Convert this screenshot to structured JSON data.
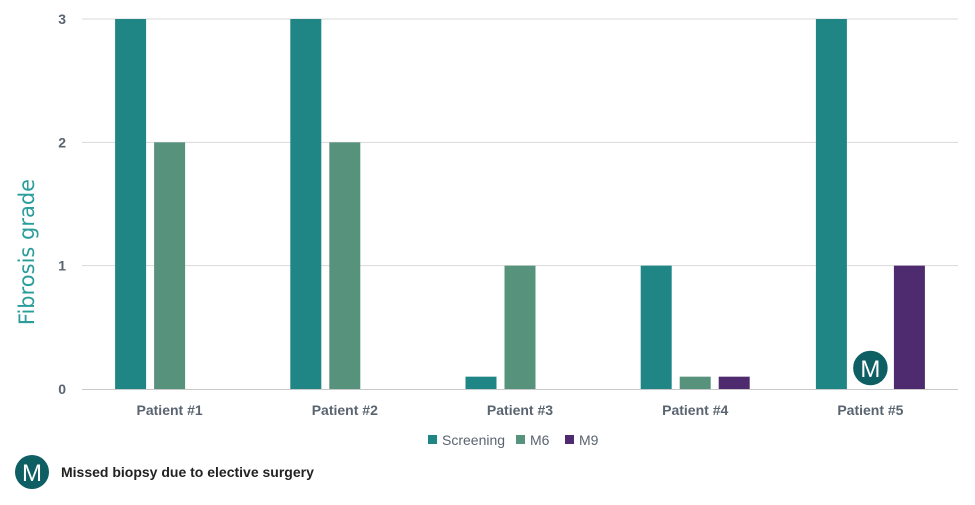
{
  "chart_data": {
    "type": "bar",
    "title": "",
    "xlabel": "",
    "ylabel": "Fibrosis grade",
    "ylim": [
      0,
      3
    ],
    "yticks": [
      "0",
      "1",
      "2",
      "3"
    ],
    "grid": true,
    "legend_position": "bottom",
    "categories": [
      "Patient #1",
      "Patient #2",
      "Patient #3",
      "Patient #4",
      "Patient #5"
    ],
    "series": [
      {
        "name": "Screening",
        "color": "#1f8585",
        "values": [
          3,
          3,
          0.1,
          1,
          3
        ]
      },
      {
        "name": "M6",
        "color": "#56927c",
        "values": [
          2,
          2,
          1,
          0.1,
          null
        ]
      },
      {
        "name": "M9",
        "color": "#4e2a6e",
        "values": [
          null,
          null,
          null,
          0.1,
          1
        ]
      }
    ],
    "annotations": [
      {
        "category": "Patient #5",
        "series": "M6",
        "symbol": "M",
        "meaning": "Missed biopsy"
      }
    ]
  },
  "footnote": {
    "symbol": "M",
    "text": "Missed biopsy due to elective surgery",
    "color": "#0d5f63"
  }
}
